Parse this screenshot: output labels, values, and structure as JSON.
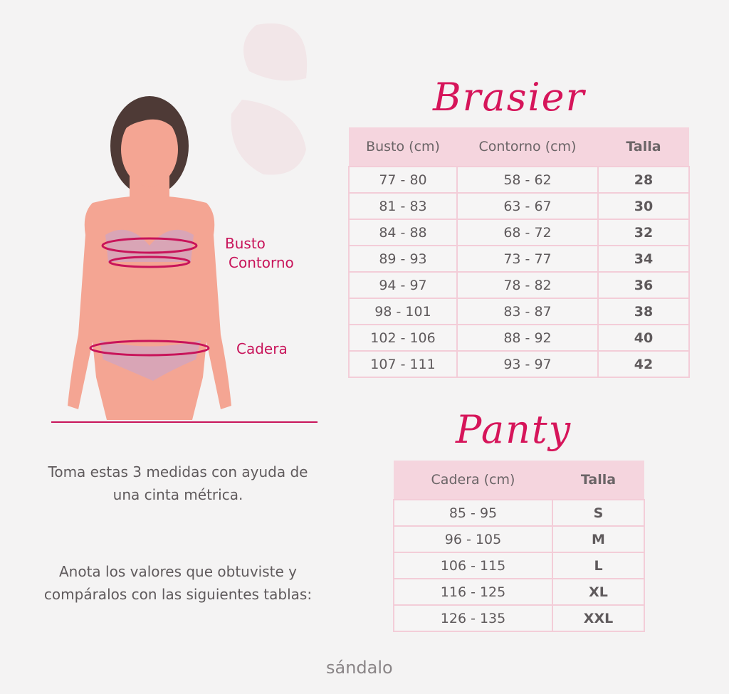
{
  "labels": {
    "busto": "Busto",
    "contorno": "Contorno",
    "cadera": "Cadera"
  },
  "instructions": {
    "p1": "Toma estas 3 medidas con ayuda de una cinta métrica.",
    "p2": "Anota los valores que obtuviste y compáralos con las siguientes tablas:"
  },
  "brasier": {
    "title": "Brasier",
    "headers": [
      "Busto (cm)",
      "Contorno (cm)",
      "Talla"
    ],
    "rows": [
      [
        "77 - 80",
        "58 - 62",
        "28"
      ],
      [
        "81 - 83",
        "63 - 67",
        "30"
      ],
      [
        "84 - 88",
        "68 - 72",
        "32"
      ],
      [
        "89 - 93",
        "73 - 77",
        "34"
      ],
      [
        "94 - 97",
        "78 - 82",
        "36"
      ],
      [
        "98 - 101",
        "83 - 87",
        "38"
      ],
      [
        "102 - 106",
        "88 - 92",
        "40"
      ],
      [
        "107 - 111",
        "93 - 97",
        "42"
      ]
    ]
  },
  "panty": {
    "title": "Panty",
    "headers": [
      "Cadera (cm)",
      "Talla"
    ],
    "rows": [
      [
        "85 - 95",
        "S"
      ],
      [
        "96 - 105",
        "M"
      ],
      [
        "106 - 115",
        "L"
      ],
      [
        "116 - 125",
        "XL"
      ],
      [
        "126 - 135",
        "XXL"
      ]
    ]
  },
  "brand": "sándalo",
  "colors": {
    "accent": "#d6155a",
    "header": "#f5d5de",
    "text": "#5f5a5c"
  }
}
